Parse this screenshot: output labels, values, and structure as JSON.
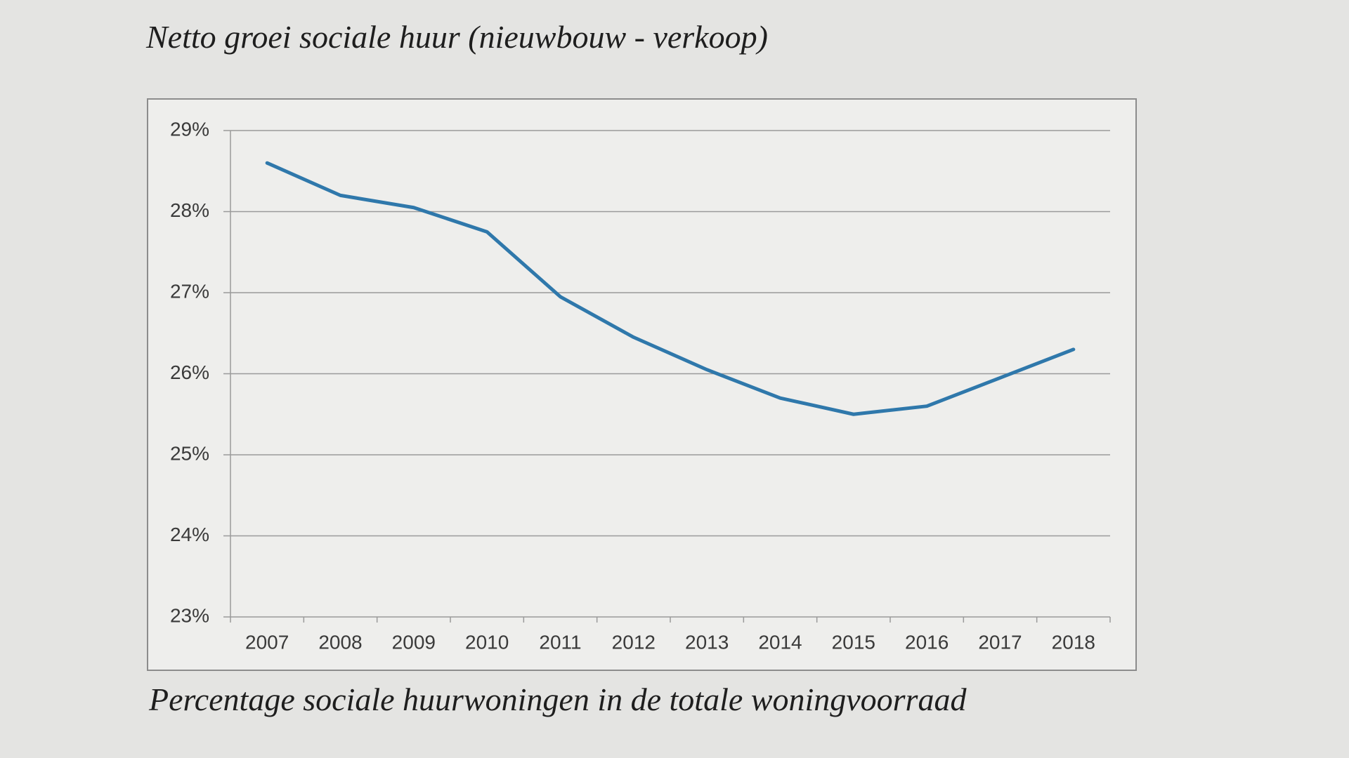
{
  "chart_data": {
    "type": "line",
    "title": "Netto groei sociale huur (nieuwbouw - verkoop)",
    "caption": "Percentage sociale huurwoningen in de totale woningvoorraad",
    "categories": [
      "2007",
      "2008",
      "2009",
      "2010",
      "2011",
      "2012",
      "2013",
      "2014",
      "2015",
      "2016",
      "2017",
      "2018"
    ],
    "series": [
      {
        "color": "#2f78ab",
        "values": [
          28.6,
          28.2,
          28.05,
          27.75,
          26.95,
          26.45,
          26.05,
          25.7,
          25.5,
          25.6,
          25.95,
          26.3
        ]
      }
    ],
    "ylim": [
      23,
      29
    ],
    "yticks": [
      {
        "value": 23,
        "label": "23%"
      },
      {
        "value": 24,
        "label": "24%"
      },
      {
        "value": 25,
        "label": "25%"
      },
      {
        "value": 26,
        "label": "26%"
      },
      {
        "value": 27,
        "label": "27%"
      },
      {
        "value": 28,
        "label": "28%"
      },
      {
        "value": 29,
        "label": "29%"
      }
    ],
    "grid": true
  }
}
